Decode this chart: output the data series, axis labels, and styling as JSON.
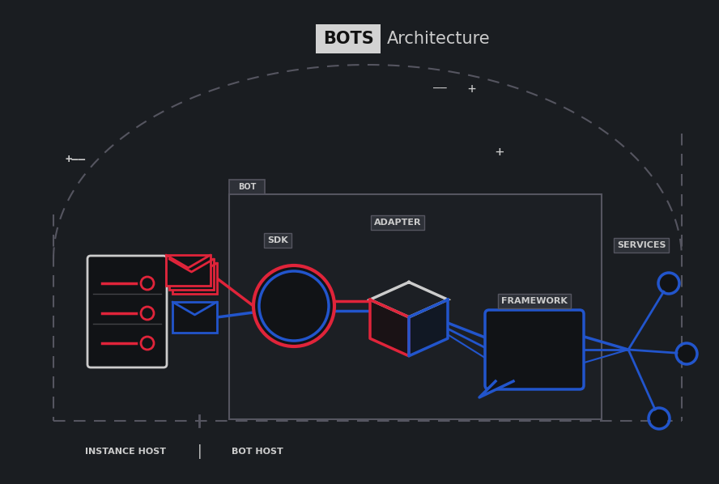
{
  "bg_color": "#1a1d21",
  "title_bots": "BOTS",
  "title_arch": "Architecture",
  "title_bots_bg": "#d2d2d2",
  "title_bots_color": "#111111",
  "title_arch_color": "#cccccc",
  "white_color": "#cccccc",
  "red_color": "#e0243a",
  "blue_color": "#2255cc",
  "dark_box_color": "#1e2126",
  "label_sdk": "SDK",
  "label_adapter": "ADAPTER",
  "label_framework": "FRAMEWORK",
  "label_bot": "BOT",
  "label_services": "SERVICES",
  "label_instance_host": "INSTANCE HOST",
  "label_bot_host": "BOT HOST",
  "dashed_color": "#555560",
  "label_color": "#cccccc",
  "label_bg": "#2e3138",
  "label_edge": "#555560"
}
